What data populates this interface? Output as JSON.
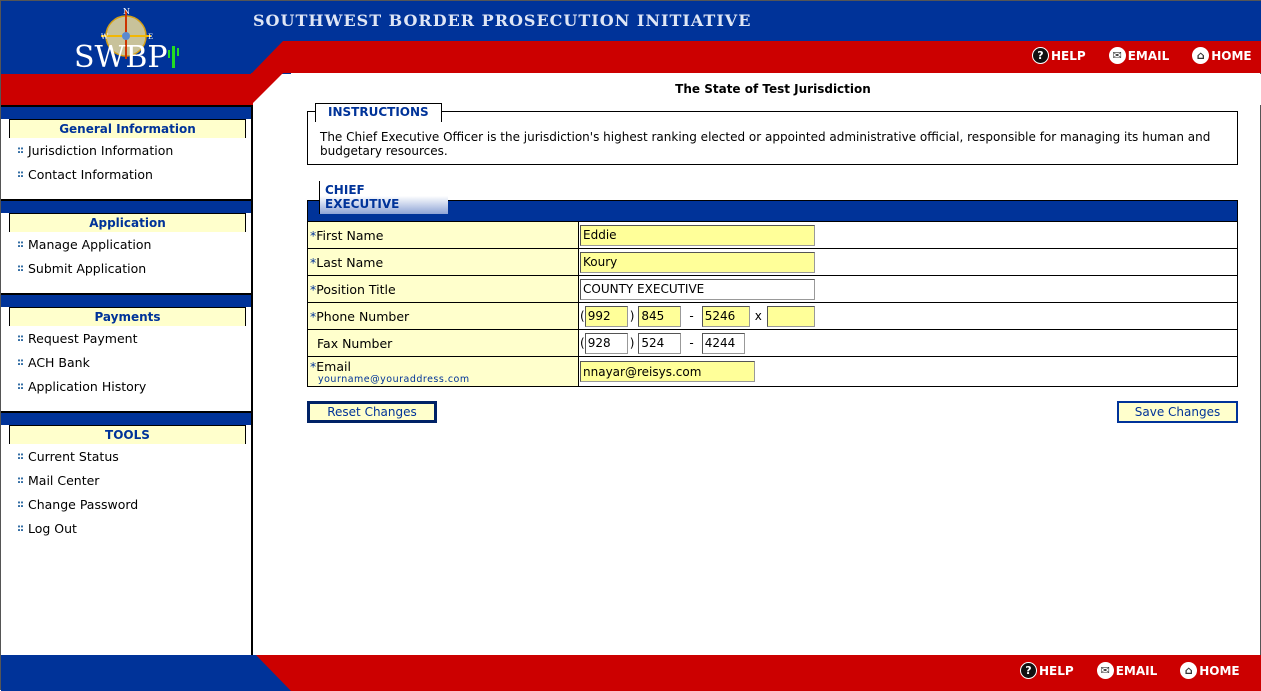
{
  "header": {
    "title": "SOUTHWEST BORDER PROSECUTION INITIATIVE",
    "logo_text": "SWBP",
    "links": [
      {
        "label": "HELP",
        "icon": "help-icon"
      },
      {
        "label": "EMAIL",
        "icon": "email-icon"
      },
      {
        "label": "HOME",
        "icon": "home-icon"
      }
    ]
  },
  "sidebar": {
    "sections": [
      {
        "title": "General Information",
        "items": [
          "Jurisdiction Information",
          "Contact Information"
        ]
      },
      {
        "title": "Application",
        "items": [
          "Manage Application",
          "Submit Application"
        ]
      },
      {
        "title": "Payments",
        "items": [
          "Request Payment",
          "ACH Bank",
          "Application History"
        ]
      },
      {
        "title": "TOOLS",
        "items": [
          "Current Status",
          "Mail Center",
          "Change Password",
          "Log Out"
        ]
      }
    ]
  },
  "main": {
    "jurisdiction": "The State of Test Jurisdiction",
    "instructions": {
      "label": "INSTRUCTIONS",
      "text": "The Chief Executive Officer is the jurisdiction's highest ranking elected or appointed administrative official, responsible for managing its human and budgetary resources."
    },
    "form": {
      "tab": "CHIEF EXECUTIVE",
      "required_mark": "*",
      "first_name": {
        "label": "First Name",
        "value": "Eddie"
      },
      "last_name": {
        "label": "Last Name",
        "value": "Koury"
      },
      "position": {
        "label": "Position Title",
        "value": "COUNTY EXECUTIVE"
      },
      "phone": {
        "label": "Phone Number",
        "area": "992",
        "prefix": "845",
        "line": "5246",
        "ext": ""
      },
      "fax": {
        "label": "Fax Number",
        "area": "928",
        "prefix": "524",
        "line": "4244"
      },
      "email": {
        "label": "Email",
        "hint": "yourname@youraddress.com",
        "value": "nnayar@reisys.com"
      },
      "open_paren": "(",
      "close_paren": ")",
      "dash": "-",
      "ext_sep": "x"
    },
    "reset_label": "Reset Changes",
    "save_label": "Save Changes"
  }
}
